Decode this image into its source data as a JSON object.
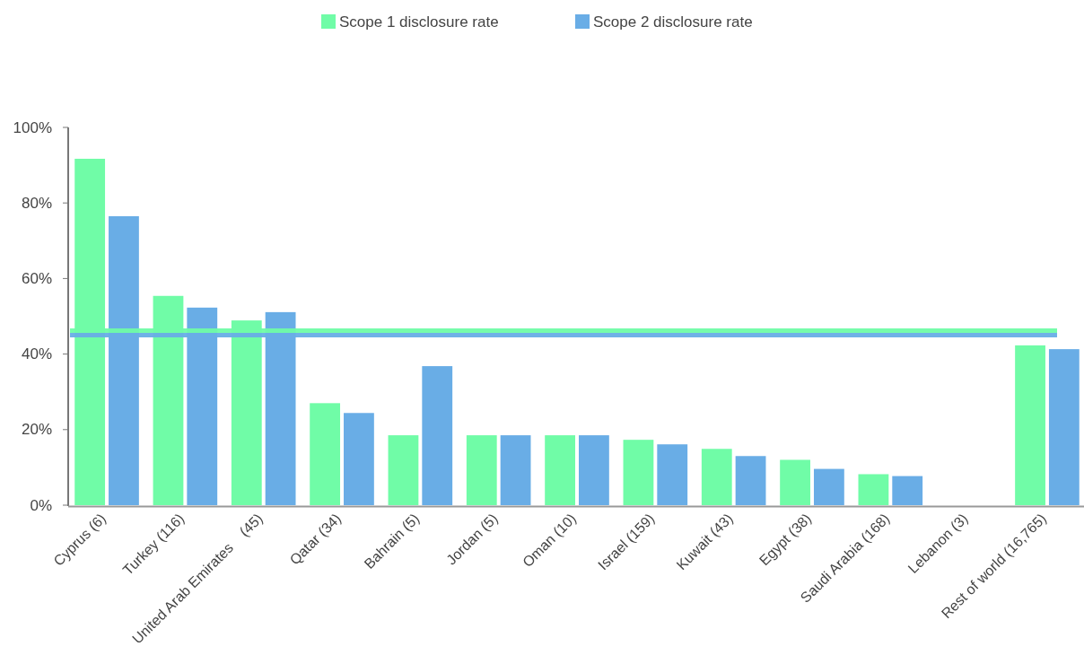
{
  "chart_data": {
    "type": "bar",
    "categories": [
      "Cyprus (6)",
      "Turkey (116)",
      "United Arab Emirates    (45)",
      "Qatar (34)",
      "Bahrain (5)",
      "Jordan (5)",
      "Oman (10)",
      "Israel (159)",
      "Kuwait (43)",
      "Egypt (38)",
      "Saudi Arabia (168)",
      "Lebanon (3)",
      "Rest of world (16,765)"
    ],
    "series": [
      {
        "name": "Scope 1 disclosure rate",
        "color": "#70fca7",
        "values": [
          91.7,
          55.4,
          48.9,
          27.0,
          18.5,
          18.5,
          18.5,
          17.3,
          14.9,
          12.0,
          8.2,
          0,
          42.3
        ]
      },
      {
        "name": "Scope 2 disclosure rate",
        "color": "#69ade6",
        "values": [
          76.5,
          52.3,
          51.1,
          24.4,
          36.8,
          18.5,
          18.5,
          16.1,
          13.0,
          9.6,
          7.7,
          0,
          41.3
        ]
      }
    ],
    "ylim": [
      0,
      100
    ],
    "yticks": [
      {
        "value": 0,
        "label": "0%"
      },
      {
        "value": 20,
        "label": "20%"
      },
      {
        "value": 40,
        "label": "40%"
      },
      {
        "value": 60,
        "label": "60%"
      },
      {
        "value": 80,
        "label": "80%"
      },
      {
        "value": 100,
        "label": "100%"
      }
    ],
    "ref_lines": [
      {
        "axis": "y",
        "value": 46.2,
        "label": null,
        "color": "#70fca7"
      },
      {
        "axis": "y",
        "value": 45.0,
        "label": null,
        "color": "#69ade6"
      }
    ],
    "grid": false,
    "legend": "top"
  }
}
